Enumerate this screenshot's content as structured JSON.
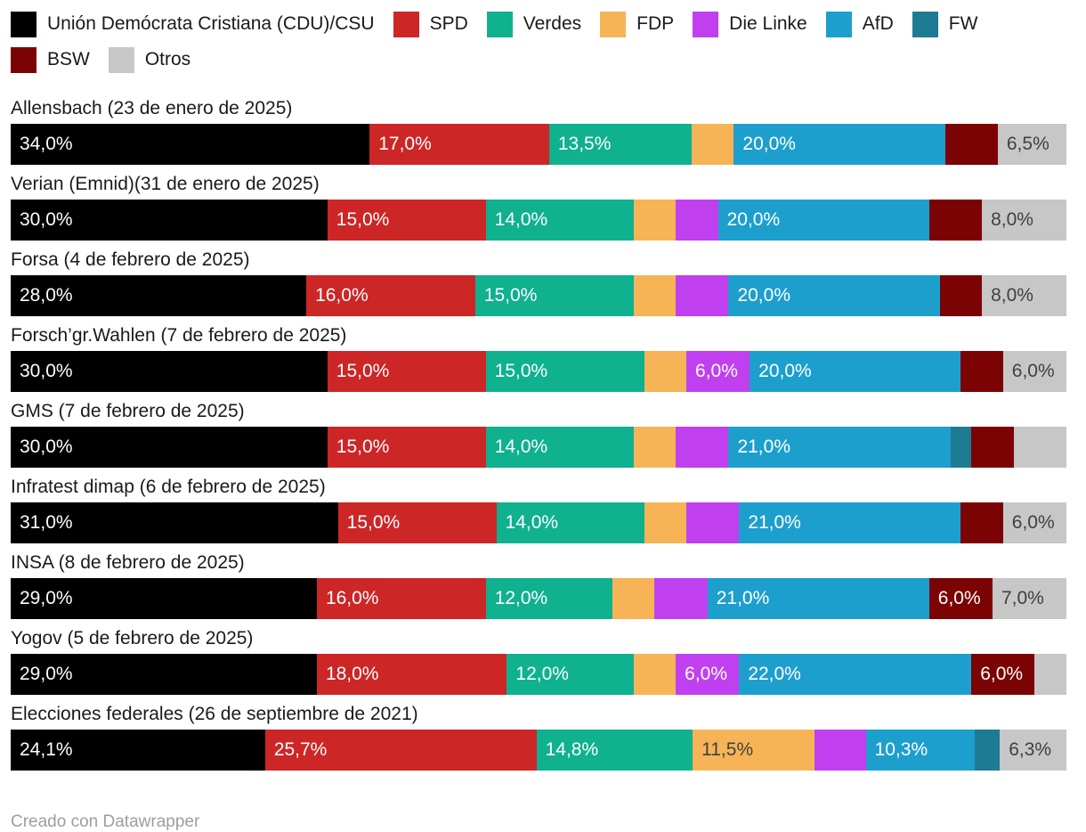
{
  "chart_data": {
    "type": "bar",
    "variant": "stacked-horizontal-100",
    "unit": "%",
    "xlim": [
      0,
      100
    ],
    "legend_position": "top",
    "parties": [
      {
        "key": "cdu-csu",
        "name": "Unión Demócrata Cristiana (CDU)/CSU",
        "color": "#000000",
        "label_style": "light"
      },
      {
        "key": "spd",
        "name": "SPD",
        "color": "#cd2626",
        "label_style": "light"
      },
      {
        "key": "verdes",
        "name": "Verdes",
        "color": "#0fb18f",
        "label_style": "light"
      },
      {
        "key": "fdp",
        "name": "FDP",
        "color": "#f6b456",
        "label_style": "dark"
      },
      {
        "key": "die-linke",
        "name": "Die Linke",
        "color": "#c040f0",
        "label_style": "light"
      },
      {
        "key": "afd",
        "name": "AfD",
        "color": "#1d9fce",
        "label_style": "light"
      },
      {
        "key": "fw",
        "name": "FW",
        "color": "#1e7b94",
        "label_style": "light"
      },
      {
        "key": "bsw",
        "name": "BSW",
        "color": "#7c0303",
        "label_style": "light"
      },
      {
        "key": "otros",
        "name": "Otros",
        "color": "#c7c7c7",
        "label_style": "dark"
      }
    ],
    "rows": [
      {
        "title": "Allensbach (23 de enero de 2025)",
        "values": {
          "cdu-csu": 34,
          "spd": 17,
          "verdes": 13.5,
          "fdp": 4,
          "die-linke": 0,
          "afd": 20,
          "fw": 0,
          "bsw": 5,
          "otros": 6.5
        },
        "labels": {
          "cdu-csu": "34,0%",
          "spd": "17,0%",
          "verdes": "13,5%",
          "afd": "20,0%",
          "otros": "6,5%"
        }
      },
      {
        "title": "Verian (Emnid)(31 de enero de 2025)",
        "values": {
          "cdu-csu": 30,
          "spd": 15,
          "verdes": 14,
          "fdp": 4,
          "die-linke": 4,
          "afd": 20,
          "fw": 0,
          "bsw": 5,
          "otros": 8
        },
        "labels": {
          "cdu-csu": "30,0%",
          "spd": "15,0%",
          "verdes": "14,0%",
          "afd": "20,0%",
          "otros": "8,0%"
        }
      },
      {
        "title": "Forsa (4 de febrero de 2025)",
        "values": {
          "cdu-csu": 28,
          "spd": 16,
          "verdes": 15,
          "fdp": 4,
          "die-linke": 5,
          "afd": 20,
          "fw": 0,
          "bsw": 4,
          "otros": 8
        },
        "labels": {
          "cdu-csu": "28,0%",
          "spd": "16,0%",
          "verdes": "15,0%",
          "afd": "20,0%",
          "otros": "8,0%"
        }
      },
      {
        "title": "Forsch’gr.Wahlen (7 de febrero de 2025)",
        "values": {
          "cdu-csu": 30,
          "spd": 15,
          "verdes": 15,
          "fdp": 4,
          "die-linke": 6,
          "afd": 20,
          "fw": 0,
          "bsw": 4,
          "otros": 6
        },
        "labels": {
          "cdu-csu": "30,0%",
          "spd": "15,0%",
          "verdes": "15,0%",
          "die-linke": "6,0%",
          "afd": "20,0%",
          "otros": "6,0%"
        }
      },
      {
        "title": "GMS (7 de febrero de 2025)",
        "values": {
          "cdu-csu": 30,
          "spd": 15,
          "verdes": 14,
          "fdp": 4,
          "die-linke": 5,
          "afd": 21,
          "fw": 2,
          "bsw": 4,
          "otros": 5
        },
        "labels": {
          "cdu-csu": "30,0%",
          "spd": "15,0%",
          "verdes": "14,0%",
          "afd": "21,0%"
        }
      },
      {
        "title": "Infratest dimap (6 de febrero de 2025)",
        "values": {
          "cdu-csu": 31,
          "spd": 15,
          "verdes": 14,
          "fdp": 4,
          "die-linke": 5,
          "afd": 21,
          "fw": 0,
          "bsw": 4,
          "otros": 6
        },
        "labels": {
          "cdu-csu": "31,0%",
          "spd": "15,0%",
          "verdes": "14,0%",
          "afd": "21,0%",
          "otros": "6,0%"
        }
      },
      {
        "title": "INSA (8 de febrero de 2025)",
        "values": {
          "cdu-csu": 29,
          "spd": 16,
          "verdes": 12,
          "fdp": 4,
          "die-linke": 5,
          "afd": 21,
          "fw": 0,
          "bsw": 6,
          "otros": 7
        },
        "labels": {
          "cdu-csu": "29,0%",
          "spd": "16,0%",
          "verdes": "12,0%",
          "afd": "21,0%",
          "bsw": "6,0%",
          "otros": "7,0%"
        }
      },
      {
        "title": "Yogov (5 de febrero de 2025)",
        "values": {
          "cdu-csu": 29,
          "spd": 18,
          "verdes": 12,
          "fdp": 4,
          "die-linke": 6,
          "afd": 22,
          "fw": 0,
          "bsw": 6,
          "otros": 3
        },
        "labels": {
          "cdu-csu": "29,0%",
          "spd": "18,0%",
          "verdes": "12,0%",
          "die-linke": "6,0%",
          "afd": "22,0%",
          "bsw": "6,0%"
        }
      },
      {
        "title": "Elecciones federales (26 de septiembre de 2021)",
        "values": {
          "cdu-csu": 24.1,
          "spd": 25.7,
          "verdes": 14.8,
          "fdp": 11.5,
          "die-linke": 4.9,
          "afd": 10.3,
          "fw": 2.4,
          "bsw": 0,
          "otros": 6.3
        },
        "labels": {
          "cdu-csu": "24,1%",
          "spd": "25,7%",
          "verdes": "14,8%",
          "fdp": "11,5%",
          "afd": "10,3%",
          "otros": "6,3%"
        }
      }
    ]
  },
  "footer": {
    "credit": "Creado con Datawrapper"
  }
}
